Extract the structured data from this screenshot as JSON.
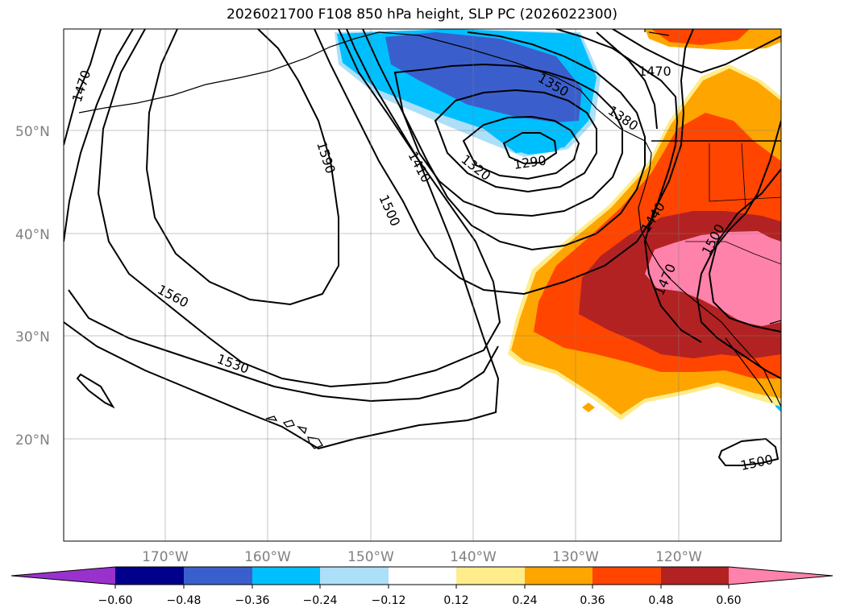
{
  "title": "2026021700 F108 850 hPa height, SLP PC (2026022300)",
  "lat_labels": [
    "50°N",
    "40°N",
    "30°N",
    "20°N"
  ],
  "lon_labels": [
    "170°W",
    "160°W",
    "150°W",
    "140°W",
    "130°W",
    "120°W"
  ],
  "contour_labels": [
    "1470",
    "1590",
    "1560",
    "1530",
    "1500",
    "1410",
    "1320",
    "1290",
    "1350",
    "1380",
    "1470",
    "1440",
    "1500",
    "1470",
    "1500"
  ],
  "colorbar": {
    "ticks": [
      "−0.60",
      "−0.48",
      "−0.36",
      "−0.24",
      "−0.12",
      "0.12",
      "0.24",
      "0.36",
      "0.48",
      "0.60"
    ],
    "colors": [
      "#9932CC",
      "#00008B",
      "#3A5FCD",
      "#00BFFF",
      "#ADDFF8",
      "#FFFFFF",
      "#FFEC8B",
      "#FFA500",
      "#FF4500",
      "#B22222",
      "#FF82AB",
      "#FF82AB"
    ]
  }
}
